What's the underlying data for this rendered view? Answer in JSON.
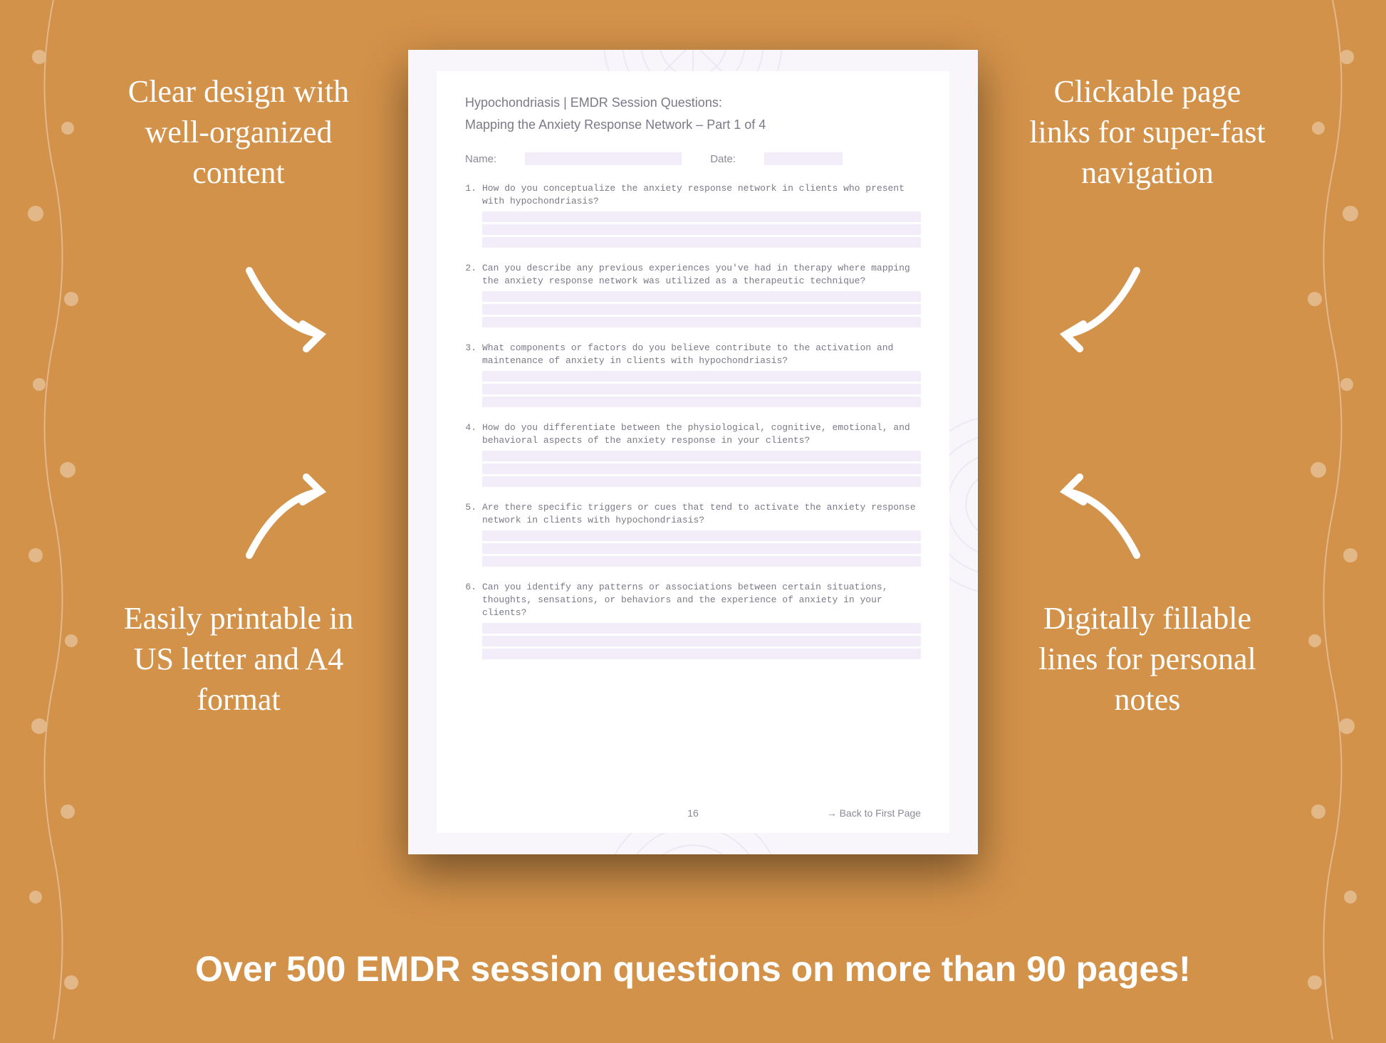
{
  "background_color": "#d3924a",
  "page_background": "#f8f5fb",
  "inner_background": "#ffffff",
  "fill_line_color": "#f2edf8",
  "text_muted": "#7a7a88",
  "callout_color": "#ffffff",
  "callouts": {
    "top_left": "Clear design with well-organized content",
    "top_right": "Clickable page links for super-fast navigation",
    "bottom_left": "Easily printable in US letter and A4 format",
    "bottom_right": "Digitally fillable lines for personal notes"
  },
  "banner": "Over 500 EMDR session questions on more than 90 pages!",
  "document": {
    "title": "Hypochondriasis | EMDR Session Questions:",
    "subtitle": "Mapping the Anxiety Response Network  – Part 1 of 4",
    "name_label": "Name:",
    "date_label": "Date:",
    "page_number": "16",
    "back_link": "→ Back to First Page",
    "questions": [
      {
        "n": "1.",
        "text": "How do you conceptualize the anxiety response network in clients who present with hypochondriasis?"
      },
      {
        "n": "2.",
        "text": "Can you describe any previous experiences you've had in therapy where mapping the anxiety response network was utilized as a therapeutic technique?"
      },
      {
        "n": "3.",
        "text": "What components or factors do you believe contribute to the activation and maintenance of anxiety in clients with hypochondriasis?"
      },
      {
        "n": "4.",
        "text": "How do you differentiate between the physiological, cognitive, emotional, and behavioral aspects of the anxiety response in your clients?"
      },
      {
        "n": "5.",
        "text": "Are there specific triggers or cues that tend to activate the anxiety response network in clients with hypochondriasis?"
      },
      {
        "n": "6.",
        "text": "Can you identify any patterns or associations between certain situations, thoughts, sensations, or behaviors and the experience of anxiety in your clients?"
      }
    ],
    "lines_per_question": 3
  }
}
